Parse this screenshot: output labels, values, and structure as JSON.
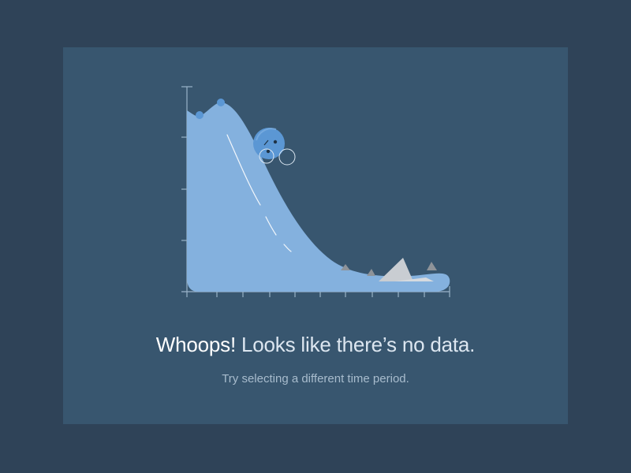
{
  "empty_state": {
    "headline_emphasis": "Whoops!",
    "headline_rest": " Looks like there’s no data.",
    "subtext": "Try selecting a different time period."
  },
  "illustration": {
    "kind": "sad empty chart with fading data curve",
    "colors": {
      "page_background": "#2f4358",
      "card_background": "#38566f",
      "curve_fill": "#84b1de",
      "ball": "#5b97d4",
      "axis": "#9ab3c9",
      "rocks": "#a3a8ae"
    }
  }
}
